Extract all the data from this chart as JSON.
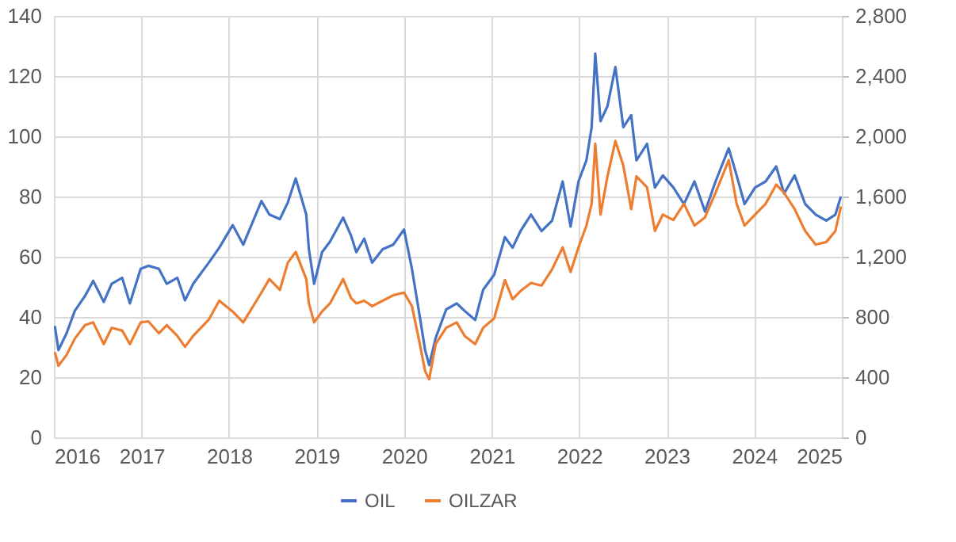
{
  "chart_data": {
    "type": "line",
    "legend": "bottom",
    "grid": true,
    "line_style": "solid",
    "marker": "none",
    "xlim": [
      "2016-01-01",
      "2025-01-01"
    ],
    "xticks": [
      {
        "value": "2016-01-01",
        "label": "2016"
      },
      {
        "value": "2017-01-01",
        "label": "2017"
      },
      {
        "value": "2018-01-01",
        "label": "2018"
      },
      {
        "value": "2019-01-01",
        "label": "2019"
      },
      {
        "value": "2020-01-01",
        "label": "2020"
      },
      {
        "value": "2021-01-01",
        "label": "2021"
      },
      {
        "value": "2022-01-01",
        "label": "2022"
      },
      {
        "value": "2023-01-01",
        "label": "2023"
      },
      {
        "value": "2024-01-01",
        "label": "2024"
      },
      {
        "value": "2025-01-01",
        "label": "2025"
      }
    ],
    "ylim": [
      0,
      140
    ],
    "yticks": [
      0,
      20,
      40,
      60,
      80,
      100,
      120,
      140
    ],
    "y2lim": [
      0,
      2800
    ],
    "y2ticks": [
      {
        "value": 0,
        "label": "0"
      },
      {
        "value": 400,
        "label": "400"
      },
      {
        "value": 800,
        "label": "800"
      },
      {
        "value": 1200,
        "label": "1,200"
      },
      {
        "value": 1600,
        "label": "1,600"
      },
      {
        "value": 2000,
        "label": "2,000"
      },
      {
        "value": 2400,
        "label": "2,400"
      },
      {
        "value": 2800,
        "label": "2,800"
      }
    ],
    "x": [
      "2016-01-05",
      "2016-01-20",
      "2016-02-23",
      "2016-03-28",
      "2016-05-10",
      "2016-06-13",
      "2016-07-27",
      "2016-08-29",
      "2016-10-12",
      "2016-11-13",
      "2016-12-28",
      "2017-01-29",
      "2017-03-14",
      "2017-04-16",
      "2017-05-30",
      "2017-07-01",
      "2017-08-04",
      "2017-10-08",
      "2017-11-21",
      "2018-01-16",
      "2018-03-01",
      "2018-05-16",
      "2018-06-18",
      "2018-08-01",
      "2018-09-03",
      "2018-10-06",
      "2018-11-19",
      "2018-11-30",
      "2018-12-22",
      "2019-01-24",
      "2019-02-26",
      "2019-04-22",
      "2019-05-25",
      "2019-06-16",
      "2019-07-19",
      "2019-08-21",
      "2019-10-04",
      "2019-11-17",
      "2020-01-01",
      "2020-02-03",
      "2020-03-07",
      "2020-03-29",
      "2020-04-15",
      "2020-05-12",
      "2020-06-25",
      "2020-08-08",
      "2020-09-10",
      "2020-10-24",
      "2020-11-26",
      "2021-01-11",
      "2021-02-25",
      "2021-03-29",
      "2021-05-01",
      "2021-06-14",
      "2021-07-28",
      "2021-09-10",
      "2021-10-24",
      "2021-11-26",
      "2021-12-29",
      "2022-01-31",
      "2022-02-22",
      "2022-03-09",
      "2022-03-31",
      "2022-04-29",
      "2022-06-01",
      "2022-07-04",
      "2022-08-06",
      "2022-08-28",
      "2022-10-11",
      "2022-11-13",
      "2022-12-16",
      "2023-01-29",
      "2023-03-14",
      "2023-04-27",
      "2023-06-10",
      "2023-07-24",
      "2023-09-17",
      "2023-10-20",
      "2023-11-22",
      "2024-01-05",
      "2024-02-18",
      "2024-04-02",
      "2024-05-05",
      "2024-06-18",
      "2024-08-01",
      "2024-09-14",
      "2024-10-28",
      "2024-12-05",
      "2024-12-28"
    ],
    "series": [
      {
        "name": "OIL",
        "color": "#4472c4",
        "values": [
          37,
          29,
          34.6,
          42,
          47,
          52,
          45,
          51,
          53,
          44.5,
          56,
          57,
          56,
          51,
          53,
          45.5,
          51,
          58,
          63,
          70.5,
          64,
          78.5,
          74,
          72.5,
          78,
          86,
          74,
          62.5,
          51,
          61.5,
          65,
          73,
          67,
          61.5,
          66,
          58,
          62.5,
          64,
          69,
          56,
          40,
          29,
          24,
          33,
          42.5,
          44.5,
          42,
          39,
          49,
          54,
          66.5,
          63,
          68.5,
          74,
          68.5,
          72,
          85,
          70,
          85,
          92,
          103,
          127.5,
          105,
          110,
          123,
          103,
          107,
          92,
          97.5,
          83,
          87,
          83,
          77.5,
          85,
          75,
          85,
          96,
          87,
          77.5,
          83,
          85,
          90,
          81,
          87,
          77.5,
          74,
          72,
          74,
          80
        ]
      },
      {
        "name": "OILZAR",
        "color": "#ed7d31",
        "axis": "y2",
        "values": [
          566,
          476,
          548,
          656,
          746,
          764,
          620,
          728,
          710,
          620,
          764,
          771,
          692,
          746,
          674,
          602,
          674,
          782,
          908,
          836,
          764,
          962,
          1052,
          980,
          1160,
          1232,
          1052,
          890,
          764,
          836,
          890,
          1052,
          926,
          890,
          908,
          872,
          908,
          944,
          962,
          872,
          620,
          440,
          386,
          620,
          728,
          764,
          674,
          620,
          728,
          791,
          1045,
          918,
          972,
          1026,
          1008,
          1117,
          1262,
          1099,
          1262,
          1407,
          1552,
          1951,
          1480,
          1734,
          1969,
          1806,
          1516,
          1734,
          1661,
          1371,
          1480,
          1444,
          1552,
          1407,
          1462,
          1625,
          1842,
          1552,
          1407,
          1480,
          1552,
          1679,
          1625,
          1516,
          1371,
          1280,
          1298,
          1371,
          1534
        ]
      }
    ]
  }
}
